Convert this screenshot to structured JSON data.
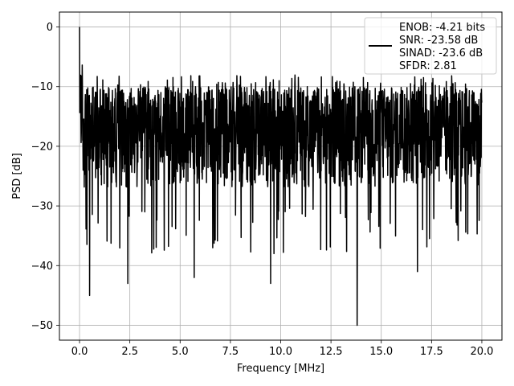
{
  "chart_data": {
    "type": "line",
    "xlabel": "Frequency [MHz]",
    "ylabel": "PSD [dB]",
    "xlim": [
      -1.0,
      21.0
    ],
    "ylim": [
      -52.5,
      2.5
    ],
    "xticks": [
      0.0,
      2.5,
      5.0,
      7.5,
      10.0,
      12.5,
      15.0,
      17.5,
      20.0
    ],
    "xtick_labels": [
      "0.0",
      "2.5",
      "5.0",
      "7.5",
      "10.0",
      "12.5",
      "15.0",
      "17.5",
      "20.0"
    ],
    "yticks": [
      0,
      -10,
      -20,
      -30,
      -40,
      -50
    ],
    "ytick_labels": [
      "0",
      "−10",
      "−20",
      "−30",
      "−40",
      "−50"
    ],
    "grid": true,
    "legend_position": "top-right",
    "line_color": "#000000",
    "series": [
      {
        "x_range": [
          0.0,
          20.0
        ],
        "peak": {
          "x": 0.0,
          "y": 0.0
        },
        "typical_range": [
          -30,
          -10
        ],
        "max_excursions": [
          -7,
          -8,
          -9
        ],
        "min_excursions": [
          {
            "x": 0.5,
            "y": -45
          },
          {
            "x": 2.4,
            "y": -43
          },
          {
            "x": 5.7,
            "y": -42
          },
          {
            "x": 9.5,
            "y": -43
          },
          {
            "x": 13.8,
            "y": -50
          },
          {
            "x": 16.8,
            "y": -41
          }
        ]
      }
    ],
    "legend": {
      "line1": "ENOB: -4.21 bits",
      "line2": "SNR: -23.58 dB",
      "line3": "SINAD: -23.6 dB",
      "line4": "SFDR: 2.81"
    }
  }
}
